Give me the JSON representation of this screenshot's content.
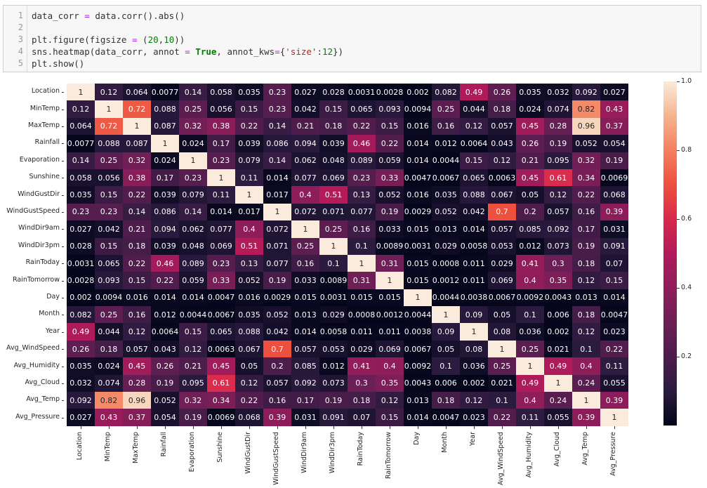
{
  "code_cell": {
    "lines": [
      {
        "n": "1",
        "text": "data_corr = data.corr().abs()"
      },
      {
        "n": "2",
        "text": ""
      },
      {
        "n": "3",
        "text": "plt.figure(figsize = (20,10))"
      },
      {
        "n": "4",
        "text": "sns.heatmap(data_corr, annot = True, annot_kws={'size':12})"
      },
      {
        "n": "5",
        "text": "plt.show()"
      }
    ]
  },
  "chart_data": {
    "type": "heatmap",
    "title": "",
    "xlabel": "",
    "ylabel": "",
    "colormap": "rocket",
    "vmin": 0,
    "vmax": 1,
    "colorbar_ticks": [
      "0.2",
      "0.4",
      "0.6",
      "0.8",
      "1.0"
    ],
    "labels": [
      "Location",
      "MinTemp",
      "MaxTemp",
      "Rainfall",
      "Evaporation",
      "Sunshine",
      "WindGustDir",
      "WindGustSpeed",
      "WindDir9am",
      "WindDir3pm",
      "RainToday",
      "RainTomorrow",
      "Day",
      "Month",
      "Year",
      "Avg_WindSpeed",
      "Avg_Humidity",
      "Avg_Cloud",
      "Avg_Temp",
      "Avg_Pressure"
    ],
    "matrix": [
      [
        "1",
        "0.12",
        "0.064",
        "0.0077",
        "0.14",
        "0.058",
        "0.035",
        "0.23",
        "0.027",
        "0.028",
        "0.0031",
        "0.0028",
        "0.002",
        "0.082",
        "0.49",
        "0.26",
        "0.035",
        "0.032",
        "0.092",
        "0.027"
      ],
      [
        "0.12",
        "1",
        "0.72",
        "0.088",
        "0.25",
        "0.056",
        "0.15",
        "0.23",
        "0.042",
        "0.15",
        "0.065",
        "0.093",
        "0.0094",
        "0.25",
        "0.044",
        "0.18",
        "0.024",
        "0.074",
        "0.82",
        "0.43"
      ],
      [
        "0.064",
        "0.72",
        "1",
        "0.087",
        "0.32",
        "0.38",
        "0.22",
        "0.14",
        "0.21",
        "0.18",
        "0.22",
        "0.15",
        "0.016",
        "0.16",
        "0.12",
        "0.057",
        "0.45",
        "0.28",
        "0.96",
        "0.37"
      ],
      [
        "0.0077",
        "0.088",
        "0.087",
        "1",
        "0.024",
        "0.17",
        "0.039",
        "0.086",
        "0.094",
        "0.039",
        "0.46",
        "0.22",
        "0.014",
        "0.012",
        "0.0064",
        "0.043",
        "0.26",
        "0.19",
        "0.052",
        "0.054"
      ],
      [
        "0.14",
        "0.25",
        "0.32",
        "0.024",
        "1",
        "0.23",
        "0.079",
        "0.14",
        "0.062",
        "0.048",
        "0.089",
        "0.059",
        "0.014",
        "0.0044",
        "0.15",
        "0.12",
        "0.21",
        "0.095",
        "0.32",
        "0.19"
      ],
      [
        "0.058",
        "0.056",
        "0.38",
        "0.17",
        "0.23",
        "1",
        "0.11",
        "0.014",
        "0.077",
        "0.069",
        "0.23",
        "0.33",
        "0.0047",
        "0.0067",
        "0.065",
        "0.0063",
        "0.45",
        "0.61",
        "0.34",
        "0.0069"
      ],
      [
        "0.035",
        "0.15",
        "0.22",
        "0.039",
        "0.079",
        "0.11",
        "1",
        "0.017",
        "0.4",
        "0.51",
        "0.13",
        "0.052",
        "0.016",
        "0.035",
        "0.088",
        "0.067",
        "0.05",
        "0.12",
        "0.22",
        "0.068"
      ],
      [
        "0.23",
        "0.23",
        "0.14",
        "0.086",
        "0.14",
        "0.014",
        "0.017",
        "1",
        "0.072",
        "0.071",
        "0.077",
        "0.19",
        "0.0029",
        "0.052",
        "0.042",
        "0.7",
        "0.2",
        "0.057",
        "0.16",
        "0.39"
      ],
      [
        "0.027",
        "0.042",
        "0.21",
        "0.094",
        "0.062",
        "0.077",
        "0.4",
        "0.072",
        "1",
        "0.25",
        "0.16",
        "0.033",
        "0.015",
        "0.013",
        "0.014",
        "0.057",
        "0.085",
        "0.092",
        "0.17",
        "0.031"
      ],
      [
        "0.028",
        "0.15",
        "0.18",
        "0.039",
        "0.048",
        "0.069",
        "0.51",
        "0.071",
        "0.25",
        "1",
        "0.1",
        "0.0089",
        "0.0031",
        "0.029",
        "0.0058",
        "0.053",
        "0.012",
        "0.073",
        "0.19",
        "0.091"
      ],
      [
        "0.0031",
        "0.065",
        "0.22",
        "0.46",
        "0.089",
        "0.23",
        "0.13",
        "0.077",
        "0.16",
        "0.1",
        "1",
        "0.31",
        "0.015",
        "0.0008",
        "0.011",
        "0.029",
        "0.41",
        "0.3",
        "0.18",
        "0.07"
      ],
      [
        "0.0028",
        "0.093",
        "0.15",
        "0.22",
        "0.059",
        "0.33",
        "0.052",
        "0.19",
        "0.033",
        "0.0089",
        "0.31",
        "1",
        "0.015",
        "0.0012",
        "0.011",
        "0.069",
        "0.4",
        "0.35",
        "0.12",
        "0.15"
      ],
      [
        "0.002",
        "0.0094",
        "0.016",
        "0.014",
        "0.014",
        "0.0047",
        "0.016",
        "0.0029",
        "0.015",
        "0.0031",
        "0.015",
        "0.015",
        "1",
        "0.0044",
        "0.0038",
        "0.0067",
        "0.0092",
        "0.0043",
        "0.013",
        "0.014"
      ],
      [
        "0.082",
        "0.25",
        "0.16",
        "0.012",
        "0.0044",
        "0.0067",
        "0.035",
        "0.052",
        "0.013",
        "0.029",
        "0.0008",
        "0.0012",
        "0.0044",
        "1",
        "0.09",
        "0.05",
        "0.1",
        "0.006",
        "0.18",
        "0.0047"
      ],
      [
        "0.49",
        "0.044",
        "0.12",
        "0.0064",
        "0.15",
        "0.065",
        "0.088",
        "0.042",
        "0.014",
        "0.0058",
        "0.011",
        "0.011",
        "0.0038",
        "0.09",
        "1",
        "0.08",
        "0.036",
        "0.002",
        "0.12",
        "0.023"
      ],
      [
        "0.26",
        "0.18",
        "0.057",
        "0.043",
        "0.12",
        "0.0063",
        "0.067",
        "0.7",
        "0.057",
        "0.053",
        "0.029",
        "0.069",
        "0.0067",
        "0.05",
        "0.08",
        "1",
        "0.25",
        "0.021",
        "0.1",
        "0.22"
      ],
      [
        "0.035",
        "0.024",
        "0.45",
        "0.26",
        "0.21",
        "0.45",
        "0.05",
        "0.2",
        "0.085",
        "0.012",
        "0.41",
        "0.4",
        "0.0092",
        "0.1",
        "0.036",
        "0.25",
        "1",
        "0.49",
        "0.4",
        "0.11"
      ],
      [
        "0.032",
        "0.074",
        "0.28",
        "0.19",
        "0.095",
        "0.61",
        "0.12",
        "0.057",
        "0.092",
        "0.073",
        "0.3",
        "0.35",
        "0.0043",
        "0.006",
        "0.002",
        "0.021",
        "0.49",
        "1",
        "0.24",
        "0.055"
      ],
      [
        "0.092",
        "0.82",
        "0.96",
        "0.052",
        "0.32",
        "0.34",
        "0.22",
        "0.16",
        "0.17",
        "0.19",
        "0.18",
        "0.12",
        "0.013",
        "0.18",
        "0.12",
        "0.1",
        "0.4",
        "0.24",
        "1",
        "0.39"
      ],
      [
        "0.027",
        "0.43",
        "0.37",
        "0.054",
        "0.19",
        "0.0069",
        "0.068",
        "0.39",
        "0.031",
        "0.091",
        "0.07",
        "0.15",
        "0.014",
        "0.0047",
        "0.023",
        "0.22",
        "0.11",
        "0.055",
        "0.39",
        "1"
      ]
    ]
  }
}
